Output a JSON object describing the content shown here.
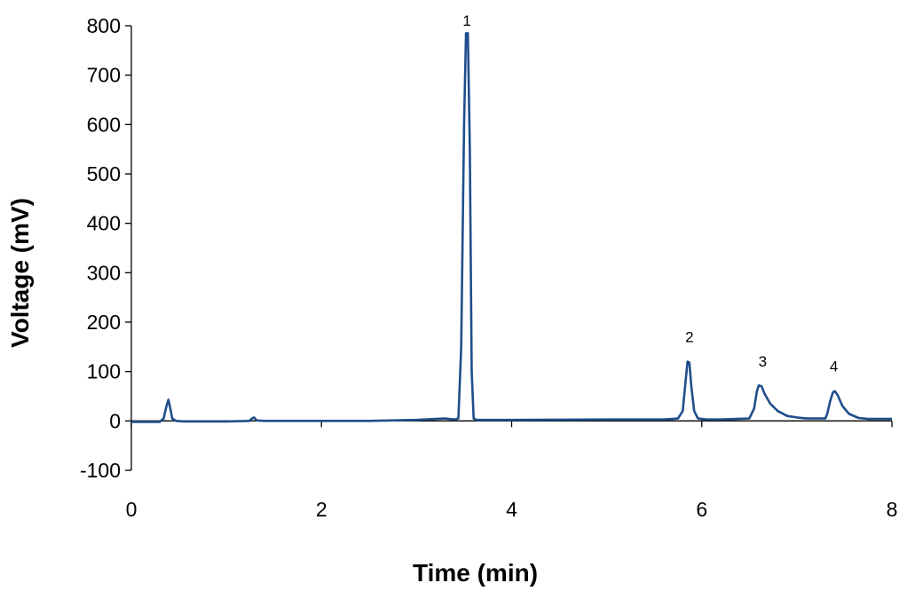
{
  "chart_data": {
    "type": "line",
    "xlabel": "Time (min)",
    "ylabel": "Voltage (mV)",
    "xlim": [
      0,
      8
    ],
    "ylim": [
      -100,
      800
    ],
    "xticks": [
      0,
      2,
      4,
      6,
      8
    ],
    "yticks": [
      -100,
      0,
      100,
      200,
      300,
      400,
      500,
      600,
      700,
      800
    ],
    "grid": false,
    "legend": "none",
    "line_color": "#1f4e8c",
    "series": [
      {
        "x": [
          0.0,
          0.3,
          0.34,
          0.37,
          0.39,
          0.41,
          0.43,
          0.47,
          0.55,
          1.0,
          1.24,
          1.27,
          1.29,
          1.32,
          1.4,
          2.0,
          2.5,
          3.0,
          3.2,
          3.3,
          3.4,
          3.44,
          3.47,
          3.5,
          3.52,
          3.54,
          3.56,
          3.58,
          3.6,
          3.63,
          3.7,
          4.0,
          5.0,
          5.6,
          5.75,
          5.8,
          5.83,
          5.85,
          5.87,
          5.89,
          5.92,
          5.96,
          6.05,
          6.2,
          6.5,
          6.55,
          6.58,
          6.6,
          6.63,
          6.66,
          6.72,
          6.8,
          6.9,
          7.0,
          7.1,
          7.3,
          7.32,
          7.35,
          7.38,
          7.4,
          7.43,
          7.48,
          7.55,
          7.65,
          7.75,
          8.0
        ],
        "y": [
          -2,
          -2,
          5,
          30,
          43,
          25,
          5,
          0,
          -1,
          -1,
          0,
          5,
          7,
          1,
          0,
          0,
          0,
          2,
          4,
          5,
          3,
          5,
          150,
          600,
          785,
          785,
          550,
          100,
          5,
          2,
          2,
          2,
          3,
          3,
          5,
          20,
          80,
          120,
          118,
          70,
          20,
          5,
          3,
          3,
          5,
          25,
          60,
          72,
          70,
          55,
          35,
          20,
          10,
          7,
          5,
          5,
          15,
          40,
          58,
          60,
          52,
          30,
          14,
          6,
          4,
          4
        ]
      }
    ],
    "annotations": [
      {
        "text": "1",
        "x": 3.53,
        "y": 800
      },
      {
        "text": "2",
        "x": 5.87,
        "y": 160
      },
      {
        "text": "3",
        "x": 6.64,
        "y": 110
      },
      {
        "text": "4",
        "x": 7.39,
        "y": 100
      }
    ]
  }
}
